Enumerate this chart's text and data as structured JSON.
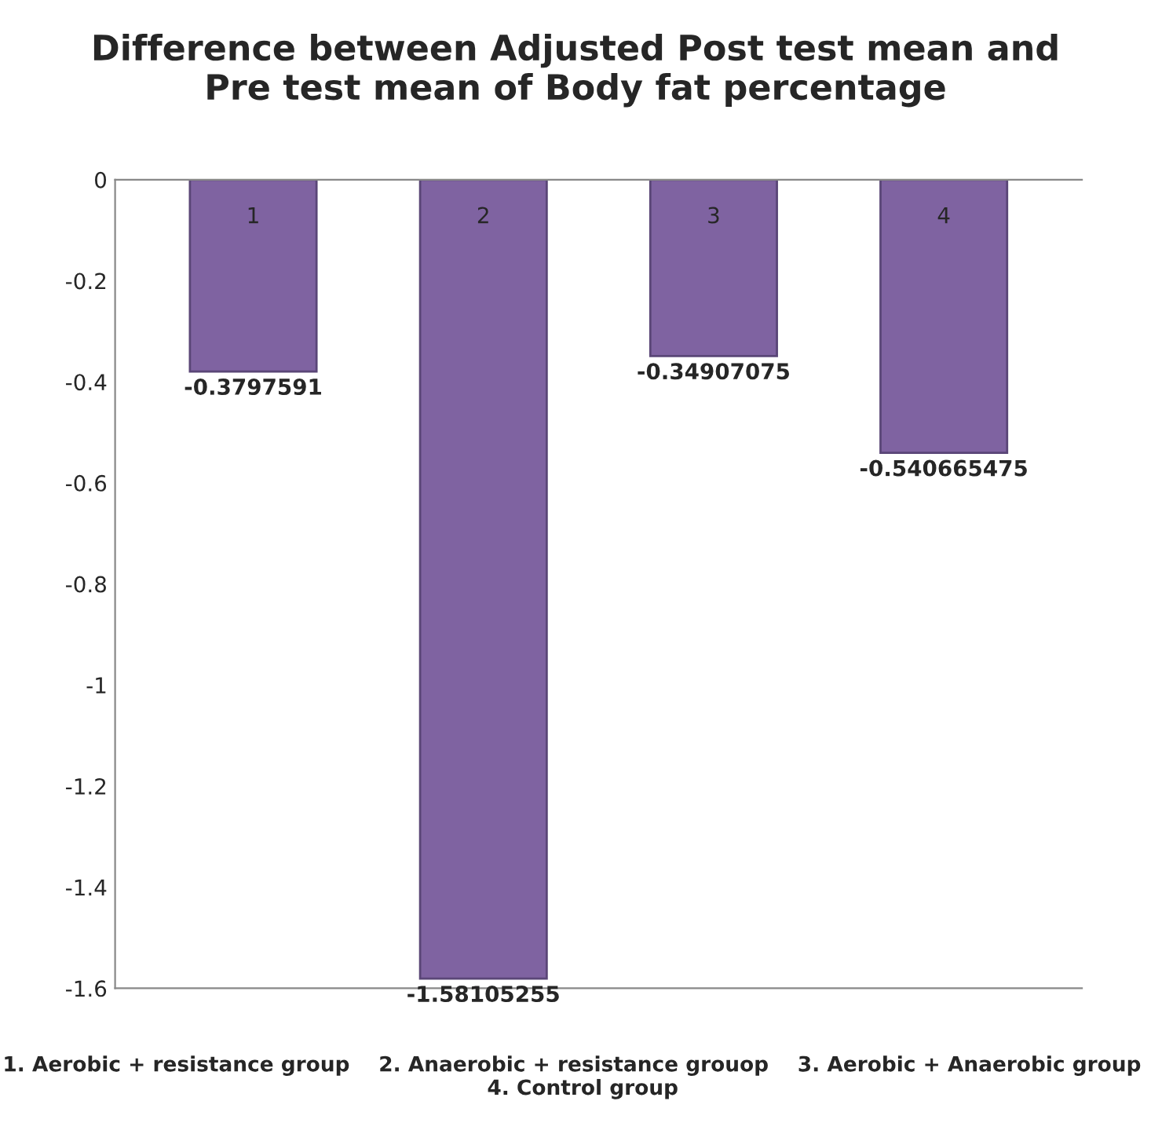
{
  "chart_data": {
    "type": "bar",
    "title": "Difference between Adjusted Post test mean and\nPre test mean of Body fat percentage",
    "categories": [
      "1",
      "2",
      "3",
      "4"
    ],
    "values": [
      -0.3797591,
      -1.58105255,
      -0.34907075,
      -0.540665475
    ],
    "color": "#7f63a1",
    "data_labels": true,
    "ylim": [
      -1.6,
      0
    ],
    "yticks": [
      0,
      -0.2,
      -0.4,
      -0.6,
      -0.8,
      -1,
      -1.2,
      -1.4,
      -1.6
    ],
    "grid": false,
    "legend": false,
    "annotations": [
      "1. Aerobic + resistance group    2. Anaerobic + resistance grouop    3. Aerobic + Anaerobic group    4. Control group"
    ]
  }
}
